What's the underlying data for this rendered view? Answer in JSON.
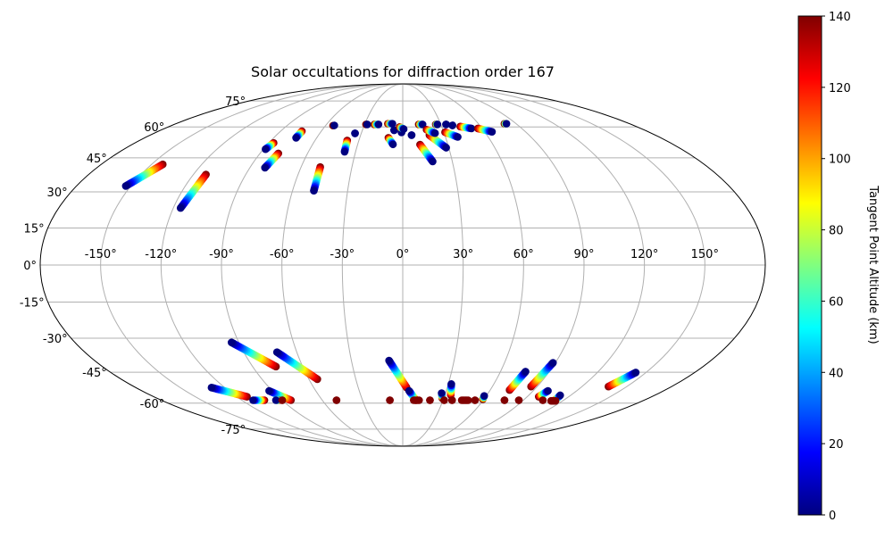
{
  "chart_data": {
    "type": "scatter",
    "projection": "mollweide",
    "title": "Solar occultations for diffraction order 167",
    "xlabel": "",
    "ylabel": "",
    "grid": true,
    "xlim": [
      -180,
      180
    ],
    "ylim": [
      -90,
      90
    ],
    "x_ticks": [
      {
        "value": -150,
        "label": "-150°"
      },
      {
        "value": -120,
        "label": "-120°"
      },
      {
        "value": -90,
        "label": "-90°"
      },
      {
        "value": -60,
        "label": "-60°"
      },
      {
        "value": -30,
        "label": "-30°"
      },
      {
        "value": 0,
        "label": "0°"
      },
      {
        "value": 30,
        "label": "30°"
      },
      {
        "value": 60,
        "label": "60°"
      },
      {
        "value": 90,
        "label": "90°"
      },
      {
        "value": 120,
        "label": "120°"
      },
      {
        "value": 150,
        "label": "150°"
      }
    ],
    "y_ticks": [
      {
        "value": -75,
        "label": "-75°"
      },
      {
        "value": -60,
        "label": "-60°"
      },
      {
        "value": -45,
        "label": "-45°"
      },
      {
        "value": -30,
        "label": "-30°"
      },
      {
        "value": -15,
        "label": "-15°"
      },
      {
        "value": 0,
        "label": "0°"
      },
      {
        "value": 15,
        "label": "15°"
      },
      {
        "value": 30,
        "label": "30°"
      },
      {
        "value": 45,
        "label": "45°"
      },
      {
        "value": 60,
        "label": "60°"
      },
      {
        "value": 75,
        "label": "75°"
      }
    ],
    "colorbar": {
      "label": "Tangent Point Altitude (km)",
      "colormap": "jet",
      "range": [
        0,
        140
      ],
      "ticks": [
        {
          "value": 0,
          "label": "0"
        },
        {
          "value": 20,
          "label": "20"
        },
        {
          "value": 40,
          "label": "40"
        },
        {
          "value": 60,
          "label": "60"
        },
        {
          "value": 80,
          "label": "80"
        },
        {
          "value": 100,
          "label": "100"
        },
        {
          "value": 120,
          "label": "120"
        },
        {
          "value": 140,
          "label": "140"
        }
      ]
    },
    "occultations": [
      {
        "lon_start": -152.8,
        "lat_start": 32.5,
        "lon_end": -143.3,
        "lat_end": 42.0,
        "alt_start": 0,
        "alt_end": 140
      },
      {
        "lon_start": -116.2,
        "lat_start": 23.2,
        "lon_end": -112.8,
        "lat_end": 37.5,
        "alt_start": 0,
        "alt_end": 140
      },
      {
        "lon_start": -88.6,
        "lat_start": 49.0,
        "lon_end": -86.8,
        "lat_end": 52.0,
        "alt_start": 0,
        "alt_end": 140
      },
      {
        "lon_start": -81.1,
        "lat_start": 40.5,
        "lon_end": -78.4,
        "lat_end": 47.0,
        "alt_start": 0,
        "alt_end": 140
      },
      {
        "lon_start": -74.4,
        "lat_start": 54.5,
        "lon_end": -74.3,
        "lat_end": 57.8,
        "alt_start": 0,
        "alt_end": 140
      },
      {
        "lon_start": -53.3,
        "lat_start": 60.8,
        "lon_end": -54.2,
        "lat_end": 60.7,
        "alt_start": 0,
        "alt_end": 140
      },
      {
        "lon_start": -48.4,
        "lat_start": 30.5,
        "lon_end": -48.7,
        "lat_end": 40.8,
        "alt_start": 0,
        "alt_end": 140
      },
      {
        "lon_start": -37.0,
        "lat_start": 47.8,
        "lon_end": -38.0,
        "lat_end": 53.2,
        "alt_start": 0,
        "alt_end": 140
      },
      {
        "lon_start": -34.5,
        "lat_start": 56.7,
        "lon_end": -34.5,
        "lat_end": 56.7,
        "alt_start": 0,
        "alt_end": 0
      },
      {
        "lon_start": -27.9,
        "lat_start": 61.3,
        "lon_end": -28.9,
        "lat_end": 61.3,
        "alt_start": 0,
        "alt_end": 140
      },
      {
        "lon_start": -19.1,
        "lat_start": 61.3,
        "lon_end": -22.3,
        "lat_end": 61.3,
        "alt_start": 0,
        "alt_end": 140
      },
      {
        "lon_start": -8.2,
        "lat_start": 61.7,
        "lon_end": -11.8,
        "lat_end": 61.7,
        "alt_start": 0,
        "alt_end": 140
      },
      {
        "lon_start": -6.5,
        "lat_start": 51.3,
        "lon_end": -10.0,
        "lat_end": 54.5,
        "alt_start": 0,
        "alt_end": 140
      },
      {
        "lon_start": -6.4,
        "lat_start": 58.3,
        "lon_end": -6.4,
        "lat_end": 58.3,
        "alt_start": 0,
        "alt_end": 0
      },
      {
        "lon_start": -0.9,
        "lat_start": 57.2,
        "lon_end": -0.9,
        "lat_end": 57.2,
        "alt_start": 0,
        "alt_end": 0
      },
      {
        "lon_start": 0.7,
        "lat_start": 58.9,
        "lon_end": -2.4,
        "lat_end": 60.0,
        "alt_start": 0,
        "alt_end": 140
      },
      {
        "lon_start": 6.3,
        "lat_start": 55.8,
        "lon_end": 6.3,
        "lat_end": 55.8,
        "alt_start": 0,
        "alt_end": 0
      },
      {
        "lon_start": 15.6,
        "lat_start": 61.3,
        "lon_end": 12.6,
        "lat_end": 61.3,
        "alt_start": 0,
        "alt_end": 140
      },
      {
        "lon_start": 18.1,
        "lat_start": 43.3,
        "lon_end": 11.5,
        "lat_end": 51.2,
        "alt_start": 0,
        "alt_end": 140
      },
      {
        "lon_start": 28.3,
        "lat_start": 49.7,
        "lon_end": 19.0,
        "lat_end": 55.8,
        "alt_start": 0,
        "alt_end": 140
      },
      {
        "lon_start": 23.4,
        "lat_start": 56.8,
        "lon_end": 17.8,
        "lat_end": 58.6,
        "alt_start": 0,
        "alt_end": 140
      },
      {
        "lon_start": 27.3,
        "lat_start": 61.3,
        "lon_end": 26.0,
        "lat_end": 61.3,
        "alt_start": 0,
        "alt_end": 140
      },
      {
        "lon_start": 34.1,
        "lat_start": 61.3,
        "lon_end": 34.1,
        "lat_end": 61.3,
        "alt_start": 0,
        "alt_end": 0
      },
      {
        "lon_start": 38.6,
        "lat_start": 54.9,
        "lon_end": 30.9,
        "lat_end": 57.3,
        "alt_start": 0,
        "alt_end": 140
      },
      {
        "lon_start": 38.7,
        "lat_start": 60.8,
        "lon_end": 38.7,
        "lat_end": 60.8,
        "alt_start": 0,
        "alt_end": 0
      },
      {
        "lon_start": 51.9,
        "lat_start": 59.2,
        "lon_end": 44.3,
        "lat_end": 60.2,
        "alt_start": 0,
        "alt_end": 140
      },
      {
        "lon_start": 65.4,
        "lat_start": 57.5,
        "lon_end": 56.8,
        "lat_end": 59.2,
        "alt_start": 0,
        "alt_end": 140
      },
      {
        "lon_start": 82.3,
        "lat_start": 61.7,
        "lon_end": 80.7,
        "lat_end": 61.7,
        "alt_start": 0,
        "alt_end": 140
      },
      {
        "lon_start": -94.0,
        "lat_start": -31.8,
        "lon_end": -76.0,
        "lat_end": -42.4,
        "alt_start": 0,
        "alt_end": 140
      },
      {
        "lon_start": -71.2,
        "lat_start": -36.0,
        "lon_end": -54.6,
        "lat_end": -48.2,
        "alt_start": 0,
        "alt_end": 140
      },
      {
        "lon_start": -128.9,
        "lat_start": -52.2,
        "lon_end": -112.6,
        "lat_end": -56.7,
        "alt_start": 0,
        "alt_end": 140
      },
      {
        "lon_start": -92.2,
        "lat_start": -53.8,
        "lon_end": -83.4,
        "lat_end": -58.5,
        "alt_start": 0,
        "alt_end": 140
      },
      {
        "lon_start": -111.6,
        "lat_start": -58.5,
        "lon_end": -103.2,
        "lat_end": -58.5,
        "alt_start": 0,
        "alt_end": 140
      },
      {
        "lon_start": -94.6,
        "lat_start": -58.5,
        "lon_end": -92.4,
        "lat_end": -58.5,
        "alt_start": 0,
        "alt_end": 140
      },
      {
        "lon_start": -89.9,
        "lat_start": -58.5,
        "lon_end": -89.9,
        "lat_end": -58.5,
        "alt_start": 140,
        "alt_end": 140
      },
      {
        "lon_start": -49.4,
        "lat_start": -58.5,
        "lon_end": -49.4,
        "lat_end": -58.5,
        "alt_start": 140,
        "alt_end": 140
      },
      {
        "lon_start": -8.0,
        "lat_start": -39.7,
        "lon_end": 2.6,
        "lat_end": -52.2,
        "alt_start": 0,
        "alt_end": 140
      },
      {
        "lon_start": 4.4,
        "lat_start": -53.8,
        "lon_end": 9.8,
        "lat_end": -58.5,
        "alt_start": 0,
        "alt_end": 140
      },
      {
        "lon_start": -9.6,
        "lat_start": -58.5,
        "lon_end": -9.6,
        "lat_end": -58.5,
        "alt_start": 140,
        "alt_end": 140
      },
      {
        "lon_start": 8.2,
        "lat_start": -58.5,
        "lon_end": 12.2,
        "lat_end": -58.5,
        "alt_start": 140,
        "alt_end": 140
      },
      {
        "lon_start": 20.3,
        "lat_start": -58.5,
        "lon_end": 20.3,
        "lat_end": -58.5,
        "alt_start": 140,
        "alt_end": 140
      },
      {
        "lon_start": 27.3,
        "lat_start": -54.9,
        "lon_end": 29.0,
        "lat_end": -57.5,
        "alt_start": 0,
        "alt_end": 140
      },
      {
        "lon_start": 32.0,
        "lat_start": -50.5,
        "lon_end": 34.2,
        "lat_end": -55.8,
        "alt_start": 0,
        "alt_end": 140
      },
      {
        "lon_start": 30.9,
        "lat_start": -58.5,
        "lon_end": 30.9,
        "lat_end": -58.5,
        "alt_start": 140,
        "alt_end": 140
      },
      {
        "lon_start": 36.8,
        "lat_start": -58.5,
        "lon_end": 36.8,
        "lat_end": -58.5,
        "alt_start": 140,
        "alt_end": 140
      },
      {
        "lon_start": 44.0,
        "lat_start": -58.5,
        "lon_end": 48.8,
        "lat_end": -58.5,
        "alt_start": 140,
        "alt_end": 140
      },
      {
        "lon_start": 53.9,
        "lat_start": -58.5,
        "lon_end": 53.9,
        "lat_end": -58.5,
        "alt_start": 140,
        "alt_end": 140
      },
      {
        "lon_start": 58.5,
        "lat_start": -56.3,
        "lon_end": 59.2,
        "lat_end": -58.0,
        "alt_start": 0,
        "alt_end": 140
      },
      {
        "lon_start": 75.4,
        "lat_start": -44.7,
        "lon_end": 73.3,
        "lat_end": -53.4,
        "alt_start": 0,
        "alt_end": 140
      },
      {
        "lon_start": 75.9,
        "lat_start": -58.5,
        "lon_end": 75.9,
        "lat_end": -58.5,
        "alt_start": 140,
        "alt_end": 140
      },
      {
        "lon_start": 88.6,
        "lat_start": -40.7,
        "lon_end": 85.9,
        "lat_end": -51.7,
        "alt_start": 0,
        "alt_end": 140
      },
      {
        "lon_start": 86.6,
        "lat_start": -58.5,
        "lon_end": 86.6,
        "lat_end": -58.5,
        "alt_start": 140,
        "alt_end": 140
      },
      {
        "lon_start": 100.2,
        "lat_start": -53.8,
        "lon_end": 98.3,
        "lat_end": -56.7,
        "alt_start": 0,
        "alt_end": 140
      },
      {
        "lon_start": 104.5,
        "lat_start": -58.5,
        "lon_end": 104.5,
        "lat_end": -58.5,
        "alt_start": 140,
        "alt_end": 140
      },
      {
        "lon_start": 112.5,
        "lat_start": -56.0,
        "lon_end": 113.6,
        "lat_end": -58.5,
        "alt_start": 0,
        "alt_end": 140
      },
      {
        "lon_start": 111.3,
        "lat_start": -58.8,
        "lon_end": 114.6,
        "lat_end": -58.8,
        "alt_start": 140,
        "alt_end": 140
      },
      {
        "lon_start": 143.7,
        "lat_start": -45.1,
        "lon_end": 137.7,
        "lat_end": -51.7,
        "alt_start": 0,
        "alt_end": 140
      }
    ]
  }
}
